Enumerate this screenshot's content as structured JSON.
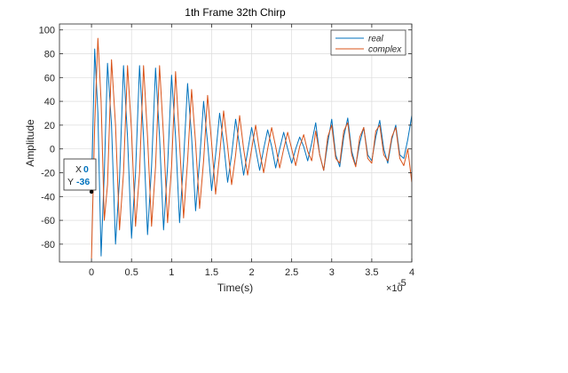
{
  "chart_data": {
    "type": "line",
    "title": "1th Frame 32th Chirp",
    "xlabel": "Time(s)",
    "ylabel": "Amplitude",
    "x_exponent_label": "×10",
    "x_exponent_power": "-5",
    "x_scale_factor": 1e-05,
    "xlim": [
      -4e-06,
      4e-05
    ],
    "ylim": [
      -95,
      105
    ],
    "x_ticks": [
      0,
      5e-06,
      1e-05,
      1.5e-05,
      2e-05,
      2.5e-05,
      3e-05,
      3.5e-05,
      4e-05
    ],
    "x_tick_labels": [
      "0",
      "0.5",
      "1",
      "1.5",
      "2",
      "2.5",
      "3",
      "3.5",
      "4"
    ],
    "y_ticks": [
      -80,
      -60,
      -40,
      -20,
      0,
      20,
      40,
      60,
      80,
      100
    ],
    "y_tick_labels": [
      "-80",
      "-60",
      "-40",
      "-20",
      "0",
      "20",
      "40",
      "60",
      "80",
      "100"
    ],
    "grid": true,
    "legend_position": "top-right",
    "series": [
      {
        "name": "real",
        "color": "#0072BD",
        "x": [
          0,
          4e-07,
          8e-07,
          1.2e-06,
          1.6e-06,
          2e-06,
          2.5e-06,
          3e-06,
          3.5e-06,
          4e-06,
          4.5e-06,
          5e-06,
          5.5e-06,
          6e-06,
          6.5e-06,
          7e-06,
          7.5e-06,
          8e-06,
          8.5e-06,
          9e-06,
          9.5e-06,
          1e-05,
          1.05e-05,
          1.1e-05,
          1.15e-05,
          1.2e-05,
          1.25e-05,
          1.3e-05,
          1.35e-05,
          1.4e-05,
          1.45e-05,
          1.5e-05,
          1.55e-05,
          1.6e-05,
          1.65e-05,
          1.7e-05,
          1.75e-05,
          1.8e-05,
          1.85e-05,
          1.9e-05,
          1.95e-05,
          2e-05,
          2.05e-05,
          2.1e-05,
          2.15e-05,
          2.2e-05,
          2.25e-05,
          2.3e-05,
          2.35e-05,
          2.4e-05,
          2.45e-05,
          2.5e-05,
          2.55e-05,
          2.6e-05,
          2.65e-05,
          2.7e-05,
          2.75e-05,
          2.8e-05,
          2.85e-05,
          2.9e-05,
          2.95e-05,
          3e-05,
          3.05e-05,
          3.1e-05,
          3.15e-05,
          3.2e-05,
          3.25e-05,
          3.3e-05,
          3.35e-05,
          3.4e-05,
          3.45e-05,
          3.5e-05,
          3.55e-05,
          3.6e-05,
          3.65e-05,
          3.7e-05,
          3.75e-05,
          3.8e-05,
          3.85e-05,
          3.9e-05,
          3.95e-05,
          4e-05
        ],
        "y": [
          -36,
          84,
          30,
          -90,
          -20,
          72,
          20,
          -80,
          -25,
          70,
          10,
          -75,
          -20,
          70,
          10,
          -72,
          -15,
          68,
          10,
          -68,
          -15,
          62,
          10,
          -62,
          -10,
          55,
          10,
          -52,
          -10,
          40,
          5,
          -35,
          -5,
          30,
          5,
          -28,
          -5,
          25,
          2,
          -22,
          -2,
          18,
          0,
          -18,
          0,
          16,
          2,
          -16,
          0,
          14,
          0,
          -12,
          0,
          10,
          2,
          -10,
          5,
          22,
          -5,
          -18,
          5,
          25,
          -5,
          -15,
          10,
          26,
          -2,
          -14,
          5,
          18,
          -5,
          -10,
          10,
          24,
          0,
          -12,
          8,
          20,
          -5,
          -8,
          8,
          28
        ]
      },
      {
        "name": "complex",
        "color": "#D95319",
        "x": [
          0,
          4e-07,
          8e-07,
          1.2e-06,
          1.6e-06,
          2e-06,
          2.5e-06,
          3e-06,
          3.5e-06,
          4e-06,
          4.5e-06,
          5e-06,
          5.5e-06,
          6e-06,
          6.5e-06,
          7e-06,
          7.5e-06,
          8e-06,
          8.5e-06,
          9e-06,
          9.5e-06,
          1e-05,
          1.05e-05,
          1.1e-05,
          1.15e-05,
          1.2e-05,
          1.25e-05,
          1.3e-05,
          1.35e-05,
          1.4e-05,
          1.45e-05,
          1.5e-05,
          1.55e-05,
          1.6e-05,
          1.65e-05,
          1.7e-05,
          1.75e-05,
          1.8e-05,
          1.85e-05,
          1.9e-05,
          1.95e-05,
          2e-05,
          2.05e-05,
          2.1e-05,
          2.15e-05,
          2.2e-05,
          2.25e-05,
          2.3e-05,
          2.35e-05,
          2.4e-05,
          2.45e-05,
          2.5e-05,
          2.55e-05,
          2.6e-05,
          2.65e-05,
          2.7e-05,
          2.75e-05,
          2.8e-05,
          2.85e-05,
          2.9e-05,
          2.95e-05,
          3e-05,
          3.05e-05,
          3.1e-05,
          3.15e-05,
          3.2e-05,
          3.25e-05,
          3.3e-05,
          3.35e-05,
          3.4e-05,
          3.45e-05,
          3.5e-05,
          3.55e-05,
          3.6e-05,
          3.65e-05,
          3.7e-05,
          3.75e-05,
          3.8e-05,
          3.85e-05,
          3.9e-05,
          3.95e-05,
          4e-05
        ],
        "y": [
          -92,
          20,
          93,
          40,
          -60,
          -30,
          75,
          20,
          -68,
          -20,
          70,
          15,
          -65,
          -20,
          70,
          10,
          -65,
          -15,
          70,
          10,
          -62,
          -15,
          65,
          5,
          -58,
          -10,
          50,
          5,
          -50,
          -10,
          45,
          5,
          -38,
          -5,
          32,
          2,
          -30,
          -5,
          28,
          0,
          -22,
          0,
          20,
          -2,
          -20,
          0,
          18,
          2,
          -16,
          0,
          14,
          0,
          -14,
          2,
          12,
          -2,
          -10,
          15,
          -5,
          -18,
          10,
          20,
          -8,
          -12,
          15,
          22,
          -5,
          -15,
          10,
          18,
          -8,
          -12,
          15,
          20,
          -5,
          -10,
          10,
          18,
          -8,
          -14,
          0,
          -28
        ]
      }
    ],
    "annotation": {
      "label_x": "X",
      "label_y": "Y",
      "x_value": "0",
      "y_value": "-36",
      "point_x": 0,
      "point_y": -36
    }
  }
}
